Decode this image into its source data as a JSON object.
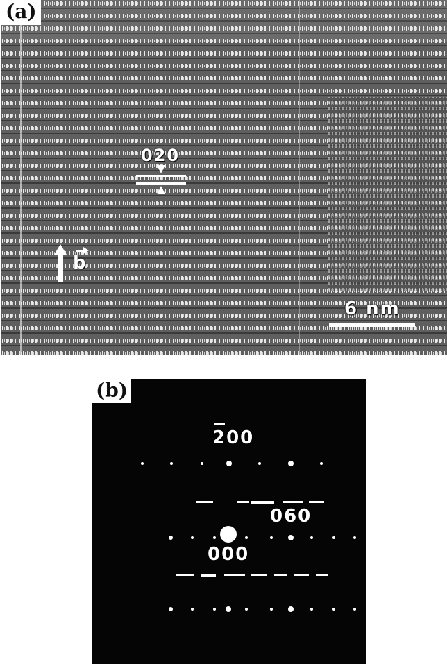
{
  "panels": {
    "a": {
      "label": "(a)",
      "plane_label": "020",
      "axis_label": "b",
      "scale_bar_label": "6 nm"
    },
    "b": {
      "label": "(b)",
      "spot_labels": {
        "upper": "200",
        "center": "000",
        "right": "060"
      }
    }
  }
}
